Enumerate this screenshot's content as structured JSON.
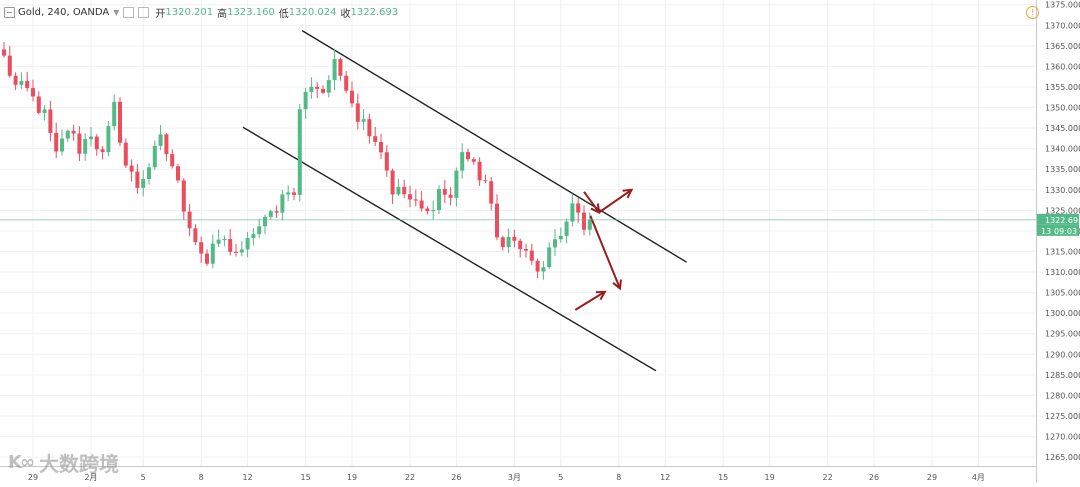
{
  "header": {
    "symbol": "Gold",
    "interval": "240",
    "broker": "OANDA",
    "open_label": "开",
    "open": "1320.201",
    "high_label": "高",
    "high": "1323.160",
    "low_label": "低",
    "low": "1320.024",
    "close_label": "收",
    "close": "1322.693"
  },
  "price_tag": {
    "price": "1322.693",
    "countdown": "09:03",
    "partial": "13"
  },
  "watermark": {
    "logo": "K∞",
    "text": "大数跨境"
  },
  "colors": {
    "up": "#53b987",
    "down": "#eb4d5c",
    "arrow": "#9b1c1c",
    "channel": "#222222",
    "price_line": "#53b987"
  },
  "icons": {
    "alert": "alert-icon",
    "collapse": "collapse-icon"
  },
  "chart_data": {
    "type": "candlestick",
    "ylim": [
      1260,
      1375
    ],
    "y_ticks": [
      1265,
      1270,
      1275,
      1280,
      1285,
      1290,
      1295,
      1300,
      1305,
      1310,
      1315,
      1320,
      1325,
      1330,
      1335,
      1340,
      1345,
      1350,
      1355,
      1360,
      1365,
      1370,
      1375
    ],
    "y_tick_labels": [
      "1265.000",
      "1270.000",
      "1275.000",
      "1280.000",
      "1285.000",
      "1290.000",
      "1295.000",
      "1300.000",
      "1305.000",
      "1310.000",
      "1315.000",
      "1320.000",
      "1325.000",
      "1330.000",
      "1335.000",
      "1340.000",
      "1345.000",
      "1350.000",
      "1355.000",
      "1360.000",
      "1365.000",
      "1370.000",
      "1375.000"
    ],
    "x_ticks": [
      {
        "label": "29",
        "i": 5
      },
      {
        "label": "2月",
        "i": 15
      },
      {
        "label": "5",
        "i": 24
      },
      {
        "label": "8",
        "i": 34
      },
      {
        "label": "12",
        "i": 42
      },
      {
        "label": "15",
        "i": 52
      },
      {
        "label": "19",
        "i": 60
      },
      {
        "label": "22",
        "i": 70
      },
      {
        "label": "26",
        "i": 78
      },
      {
        "label": "3月",
        "i": 88
      },
      {
        "label": "5",
        "i": 96
      },
      {
        "label": "8",
        "i": 106
      },
      {
        "label": "12",
        "i": 114
      },
      {
        "label": "15",
        "i": 124
      },
      {
        "label": "19",
        "i": 132
      },
      {
        "label": "22",
        "i": 142
      },
      {
        "label": "26",
        "i": 150
      },
      {
        "label": "29",
        "i": 160
      },
      {
        "label": "4月",
        "i": 168
      }
    ],
    "grid": true,
    "last_price": 1322.693,
    "anchors": [
      [
        0,
        1362
      ],
      [
        2,
        1355
      ],
      [
        4,
        1354
      ],
      [
        7,
        1348
      ],
      [
        9,
        1338
      ],
      [
        11,
        1345
      ],
      [
        13,
        1340
      ],
      [
        15,
        1344
      ],
      [
        17,
        1338
      ],
      [
        19,
        1350
      ],
      [
        21,
        1336
      ],
      [
        23,
        1331
      ],
      [
        25,
        1336
      ],
      [
        27,
        1342
      ],
      [
        29,
        1336
      ],
      [
        31,
        1326
      ],
      [
        33,
        1318
      ],
      [
        35,
        1312
      ],
      [
        37,
        1318
      ],
      [
        39,
        1316
      ],
      [
        41,
        1314
      ],
      [
        43,
        1320
      ],
      [
        45,
        1322
      ],
      [
        47,
        1326
      ],
      [
        49,
        1331
      ],
      [
        50,
        1328
      ],
      [
        51,
        1350
      ],
      [
        53,
        1356
      ],
      [
        55,
        1354
      ],
      [
        57,
        1360
      ],
      [
        59,
        1356
      ],
      [
        61,
        1348
      ],
      [
        63,
        1345
      ],
      [
        65,
        1340
      ],
      [
        67,
        1330
      ],
      [
        69,
        1329
      ],
      [
        71,
        1326
      ],
      [
        73,
        1324
      ],
      [
        75,
        1330
      ],
      [
        77,
        1328
      ],
      [
        79,
        1340
      ],
      [
        81,
        1335
      ],
      [
        83,
        1332
      ],
      [
        85,
        1318
      ],
      [
        87,
        1318
      ],
      [
        89,
        1316
      ],
      [
        91,
        1312
      ],
      [
        93,
        1310
      ],
      [
        95,
        1318
      ],
      [
        97,
        1322
      ],
      [
        98,
        1326
      ],
      [
        100,
        1320
      ],
      [
        101,
        1322.693
      ]
    ],
    "channel_lines": [
      {
        "name": "upper",
        "x0": 51.4,
        "y0": 1368.7,
        "x1": 117.7,
        "y1": 1312.4
      },
      {
        "name": "lower",
        "x0": 41.2,
        "y0": 1345.2,
        "x1": 112.4,
        "y1": 1286.0
      }
    ],
    "arrows": [
      {
        "x0": 100.0,
        "y0": 1329.5,
        "x1": 102.6,
        "y1": 1324.5
      },
      {
        "x0": 102.7,
        "y0": 1324.6,
        "x1": 108.2,
        "y1": 1330.0
      },
      {
        "x0": 101.1,
        "y0": 1323.7,
        "x1": 106.2,
        "y1": 1306.0
      },
      {
        "x0": 98.5,
        "y0": 1300.8,
        "x1": 103.6,
        "y1": 1305.2
      }
    ]
  }
}
